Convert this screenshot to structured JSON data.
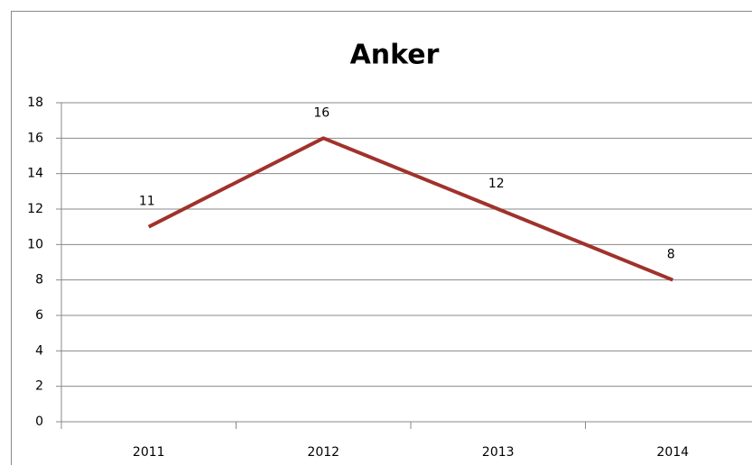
{
  "chart_data": {
    "type": "line",
    "title": "Anker",
    "categories": [
      "2011",
      "2012",
      "2013",
      "2014"
    ],
    "series": [
      {
        "name": "Anker",
        "color": "#a0322b",
        "values": [
          11,
          16,
          12,
          8
        ]
      }
    ],
    "ylim": [
      0,
      18
    ],
    "yticks": [
      0,
      2,
      4,
      6,
      8,
      10,
      12,
      14,
      16,
      18
    ],
    "grid": true
  }
}
